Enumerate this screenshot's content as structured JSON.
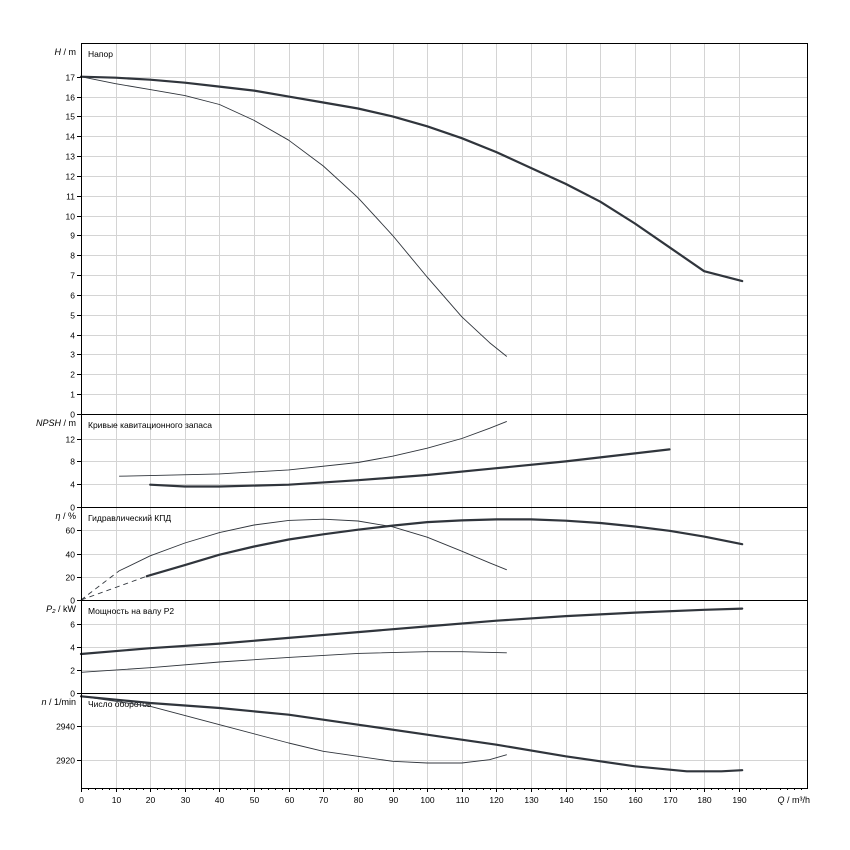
{
  "chart_data": {
    "type": "line",
    "x_axis": {
      "label": "Q / m³/h",
      "range": [
        0,
        210
      ],
      "tick_values": [
        0,
        10,
        20,
        30,
        40,
        50,
        60,
        70,
        80,
        90,
        100,
        110,
        120,
        130,
        140,
        150,
        160,
        170,
        180,
        190
      ],
      "tick_labels": [
        "0",
        "10",
        "20",
        "30",
        "40",
        "50",
        "60",
        "70",
        "80",
        "90",
        "100",
        "110",
        "120",
        "130",
        "140",
        "150",
        "160",
        "170",
        "180",
        "190"
      ]
    },
    "grid": true,
    "panels": [
      {
        "id": "head",
        "title": "Напор",
        "ylabel": "H / m",
        "ylim": [
          0,
          18.7
        ],
        "ytick_values": [
          0,
          1,
          2,
          3,
          4,
          5,
          6,
          7,
          8,
          9,
          10,
          11,
          12,
          13,
          14,
          15,
          16,
          17
        ],
        "ytick_labels": [
          "0",
          "1",
          "2",
          "3",
          "4",
          "5",
          "6",
          "7",
          "8",
          "9",
          "10",
          "11",
          "12",
          "13",
          "14",
          "15",
          "16",
          "17"
        ],
        "series": [
          {
            "style": "bold",
            "points": [
              [
                0,
                17.0
              ],
              [
                10,
                16.95
              ],
              [
                20,
                16.85
              ],
              [
                30,
                16.7
              ],
              [
                40,
                16.5
              ],
              [
                50,
                16.3
              ],
              [
                60,
                16.0
              ],
              [
                70,
                15.7
              ],
              [
                80,
                15.4
              ],
              [
                90,
                15.0
              ],
              [
                100,
                14.5
              ],
              [
                110,
                13.9
              ],
              [
                120,
                13.2
              ],
              [
                130,
                12.4
              ],
              [
                140,
                11.6
              ],
              [
                150,
                10.7
              ],
              [
                160,
                9.6
              ],
              [
                170,
                8.4
              ],
              [
                180,
                7.2
              ],
              [
                191,
                6.7
              ]
            ]
          },
          {
            "style": "thin",
            "points": [
              [
                0,
                17.0
              ],
              [
                10,
                16.65
              ],
              [
                20,
                16.35
              ],
              [
                30,
                16.05
              ],
              [
                40,
                15.6
              ],
              [
                50,
                14.8
              ],
              [
                60,
                13.8
              ],
              [
                70,
                12.5
              ],
              [
                80,
                10.9
              ],
              [
                90,
                9.0
              ],
              [
                100,
                6.9
              ],
              [
                110,
                4.9
              ],
              [
                118,
                3.6
              ],
              [
                123,
                2.9
              ]
            ]
          }
        ]
      },
      {
        "id": "npsh",
        "title": "Кривые кавитационного запаса",
        "ylabel": "NPSH / m",
        "ylim": [
          0,
          16.3
        ],
        "ytick_values": [
          0,
          4,
          8,
          12
        ],
        "ytick_labels": [
          "0",
          "4",
          "8",
          "12"
        ],
        "series": [
          {
            "style": "bold",
            "points": [
              [
                20,
                3.9
              ],
              [
                30,
                3.6
              ],
              [
                40,
                3.6
              ],
              [
                60,
                3.9
              ],
              [
                80,
                4.7
              ],
              [
                100,
                5.6
              ],
              [
                120,
                6.8
              ],
              [
                140,
                8.0
              ],
              [
                160,
                9.4
              ],
              [
                170,
                10.1
              ]
            ]
          },
          {
            "style": "thin",
            "points": [
              [
                11,
                5.4
              ],
              [
                20,
                5.5
              ],
              [
                40,
                5.8
              ],
              [
                60,
                6.5
              ],
              [
                80,
                7.8
              ],
              [
                90,
                8.9
              ],
              [
                100,
                10.3
              ],
              [
                110,
                12.0
              ],
              [
                118,
                13.8
              ],
              [
                123,
                15.0
              ]
            ]
          }
        ]
      },
      {
        "id": "efficiency",
        "title": "Гидравлический КПД",
        "ylabel": "η / %",
        "ylim": [
          0,
          80
        ],
        "ytick_values": [
          0,
          20,
          40,
          60
        ],
        "ytick_labels": [
          "0",
          "20",
          "40",
          "60"
        ],
        "series": [
          {
            "style": "bold",
            "points": [
              [
                19,
                20.5
              ],
              [
                30,
                30
              ],
              [
                40,
                39
              ],
              [
                50,
                46
              ],
              [
                60,
                52
              ],
              [
                70,
                56.5
              ],
              [
                80,
                60.5
              ],
              [
                90,
                64
              ],
              [
                100,
                67
              ],
              [
                110,
                68.5
              ],
              [
                120,
                69.3
              ],
              [
                130,
                69.3
              ],
              [
                140,
                68.2
              ],
              [
                150,
                66.2
              ],
              [
                160,
                63.2
              ],
              [
                170,
                59.5
              ],
              [
                180,
                54.5
              ],
              [
                191,
                48
              ]
            ]
          },
          {
            "style": "thin",
            "points": [
              [
                11,
                25
              ],
              [
                20,
                38
              ],
              [
                30,
                49
              ],
              [
                40,
                58
              ],
              [
                50,
                64.5
              ],
              [
                60,
                68.5
              ],
              [
                70,
                69.5
              ],
              [
                80,
                68
              ],
              [
                90,
                63
              ],
              [
                100,
                54
              ],
              [
                110,
                42
              ],
              [
                118,
                32
              ],
              [
                123,
                26
              ]
            ]
          },
          {
            "style": "dashed",
            "points": [
              [
                0,
                0
              ],
              [
                19,
                20.5
              ]
            ]
          },
          {
            "style": "dashed",
            "points": [
              [
                0,
                0
              ],
              [
                11,
                25
              ]
            ]
          }
        ]
      },
      {
        "id": "power",
        "title": "Мощность на валу P2",
        "ylabel": "P₂ / kW",
        "ylim": [
          0,
          8.1
        ],
        "ytick_values": [
          0,
          2,
          4,
          6
        ],
        "ytick_labels": [
          "0",
          "2",
          "4",
          "6"
        ],
        "series": [
          {
            "style": "bold",
            "points": [
              [
                0,
                3.4
              ],
              [
                20,
                3.9
              ],
              [
                40,
                4.3
              ],
              [
                60,
                4.8
              ],
              [
                80,
                5.3
              ],
              [
                100,
                5.8
              ],
              [
                120,
                6.3
              ],
              [
                140,
                6.7
              ],
              [
                160,
                7.0
              ],
              [
                180,
                7.25
              ],
              [
                191,
                7.35
              ]
            ]
          },
          {
            "style": "thin",
            "points": [
              [
                0,
                1.8
              ],
              [
                20,
                2.2
              ],
              [
                40,
                2.7
              ],
              [
                60,
                3.1
              ],
              [
                80,
                3.45
              ],
              [
                100,
                3.6
              ],
              [
                110,
                3.6
              ],
              [
                123,
                3.5
              ]
            ]
          }
        ]
      },
      {
        "id": "speed",
        "title": "Число оборотов",
        "ylabel": "n / 1/min",
        "ylim": [
          2903,
          2960
        ],
        "ytick_values": [
          2920,
          2940
        ],
        "ytick_labels": [
          "2920",
          "2940"
        ],
        "series": [
          {
            "style": "bold",
            "points": [
              [
                0,
                2958
              ],
              [
                20,
                2954
              ],
              [
                40,
                2951
              ],
              [
                60,
                2947
              ],
              [
                80,
                2941
              ],
              [
                100,
                2935
              ],
              [
                120,
                2929
              ],
              [
                140,
                2922
              ],
              [
                160,
                2916
              ],
              [
                175,
                2913
              ],
              [
                185,
                2913
              ],
              [
                191,
                2913.7
              ]
            ]
          },
          {
            "style": "thin",
            "points": [
              [
                0,
                2958
              ],
              [
                20,
                2952
              ],
              [
                40,
                2941
              ],
              [
                60,
                2930
              ],
              [
                70,
                2925
              ],
              [
                80,
                2922
              ],
              [
                90,
                2919
              ],
              [
                100,
                2918
              ],
              [
                110,
                2918
              ],
              [
                118,
                2920
              ],
              [
                123,
                2923
              ]
            ]
          }
        ]
      }
    ]
  }
}
